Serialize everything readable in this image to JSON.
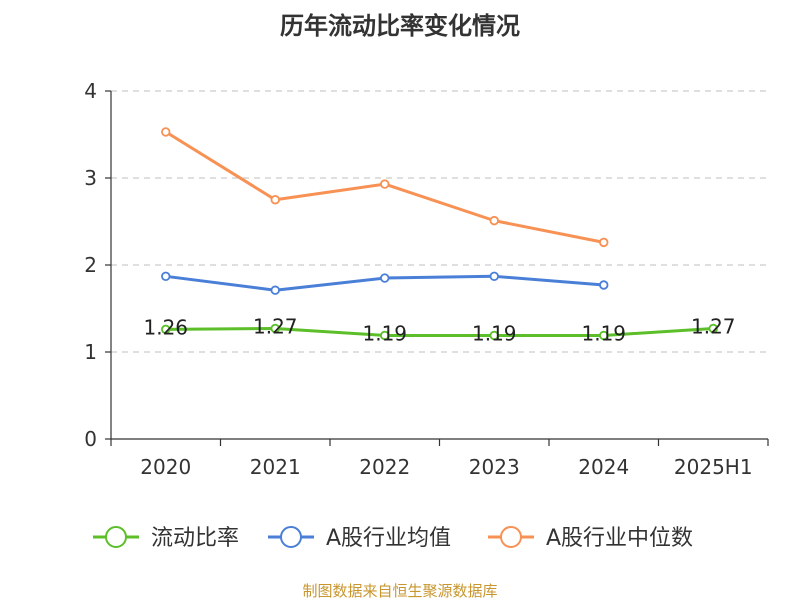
{
  "chart_data": {
    "type": "line",
    "title": "历年流动比率变化情况",
    "categories": [
      "2020",
      "2021",
      "2022",
      "2023",
      "2024",
      "2025H1"
    ],
    "ylim": [
      0,
      4
    ],
    "yticks": [
      "0",
      "1",
      "2",
      "3",
      "4"
    ],
    "grid": true,
    "legend_position": "bottom",
    "series": [
      {
        "name": "流动比率",
        "color": "#5cbf2a",
        "values": [
          1.26,
          1.27,
          1.19,
          1.19,
          1.19,
          1.27
        ],
        "labels": [
          "1.26",
          "1.27",
          "1.19",
          "1.19",
          "1.19",
          "1.27"
        ]
      },
      {
        "name": "A股行业均值",
        "color": "#4a7fd8",
        "values": [
          1.87,
          1.71,
          1.85,
          1.87,
          1.77,
          null
        ]
      },
      {
        "name": "A股行业中位数",
        "color": "#f79154",
        "values": [
          3.53,
          2.75,
          2.93,
          2.51,
          2.26,
          null
        ]
      }
    ],
    "source": "制图数据来自恒生聚源数据库"
  }
}
